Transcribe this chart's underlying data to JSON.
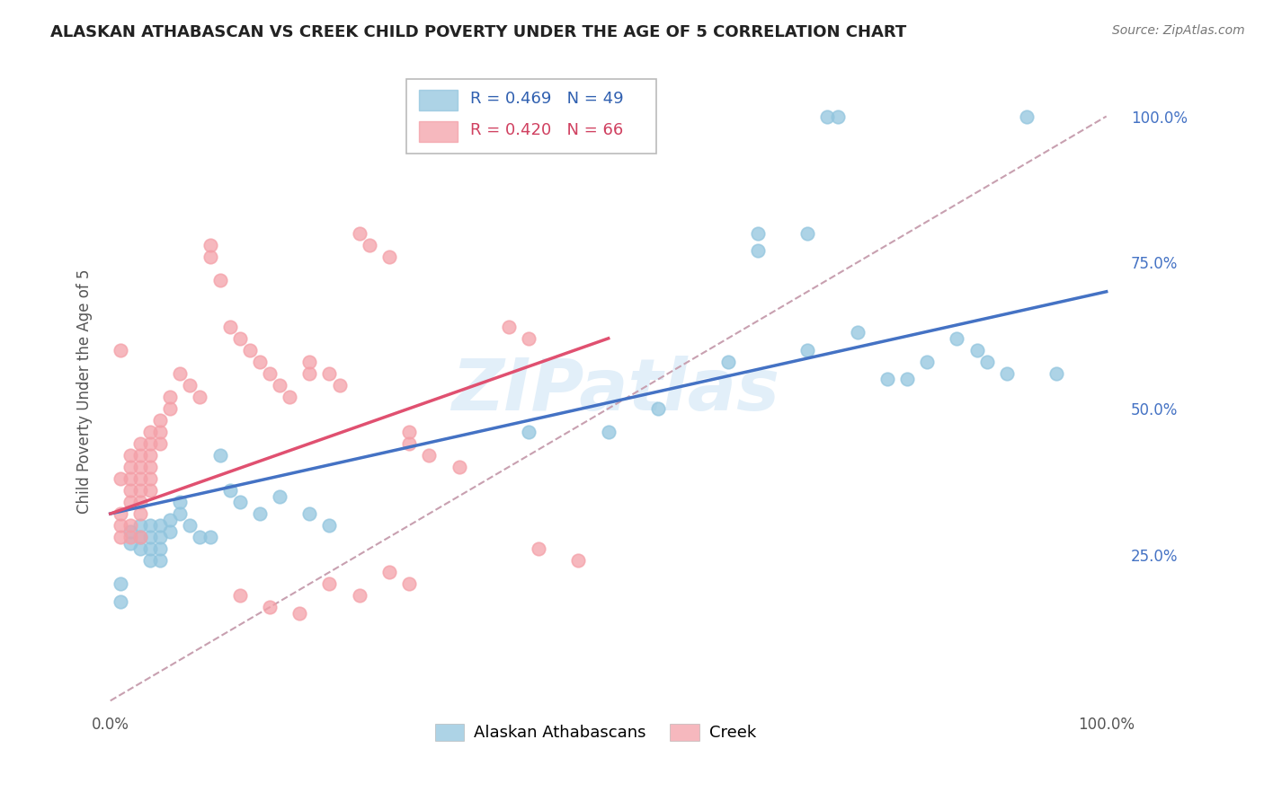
{
  "title": "ALASKAN ATHABASCAN VS CREEK CHILD POVERTY UNDER THE AGE OF 5 CORRELATION CHART",
  "source": "Source: ZipAtlas.com",
  "ylabel": "Child Poverty Under the Age of 5",
  "blue_R": "R = 0.469",
  "blue_N": "N = 49",
  "pink_R": "R = 0.420",
  "pink_N": "N = 66",
  "blue_color": "#92c5de",
  "pink_color": "#f4a0a8",
  "blue_line_color": "#4472c4",
  "pink_line_color": "#e05070",
  "dashed_line_color": "#c8a0b0",
  "watermark": "ZIPatlas",
  "background_color": "#ffffff",
  "grid_color": "#d8d8d8",
  "blue_points_x": [
    0.01,
    0.01,
    0.02,
    0.02,
    0.03,
    0.03,
    0.03,
    0.04,
    0.04,
    0.04,
    0.04,
    0.05,
    0.05,
    0.05,
    0.05,
    0.06,
    0.06,
    0.07,
    0.07,
    0.08,
    0.09,
    0.1,
    0.11,
    0.12,
    0.13,
    0.15,
    0.17,
    0.2,
    0.22,
    0.42,
    0.5,
    0.55,
    0.62,
    0.65,
    0.65,
    0.7,
    0.7,
    0.72,
    0.73,
    0.75,
    0.78,
    0.8,
    0.82,
    0.85,
    0.87,
    0.88,
    0.9,
    0.92,
    0.95
  ],
  "blue_points_y": [
    0.2,
    0.17,
    0.29,
    0.27,
    0.3,
    0.28,
    0.26,
    0.3,
    0.28,
    0.26,
    0.24,
    0.3,
    0.28,
    0.26,
    0.24,
    0.31,
    0.29,
    0.34,
    0.32,
    0.3,
    0.28,
    0.28,
    0.42,
    0.36,
    0.34,
    0.32,
    0.35,
    0.32,
    0.3,
    0.46,
    0.46,
    0.5,
    0.58,
    0.8,
    0.77,
    0.6,
    0.8,
    1.0,
    1.0,
    0.63,
    0.55,
    0.55,
    0.58,
    0.62,
    0.6,
    0.58,
    0.56,
    1.0,
    0.56
  ],
  "pink_points_x": [
    0.01,
    0.01,
    0.01,
    0.01,
    0.01,
    0.02,
    0.02,
    0.02,
    0.02,
    0.02,
    0.02,
    0.02,
    0.03,
    0.03,
    0.03,
    0.03,
    0.03,
    0.03,
    0.03,
    0.03,
    0.04,
    0.04,
    0.04,
    0.04,
    0.04,
    0.04,
    0.05,
    0.05,
    0.05,
    0.06,
    0.06,
    0.07,
    0.08,
    0.09,
    0.1,
    0.1,
    0.11,
    0.12,
    0.13,
    0.14,
    0.15,
    0.16,
    0.17,
    0.18,
    0.2,
    0.2,
    0.22,
    0.23,
    0.25,
    0.26,
    0.28,
    0.3,
    0.3,
    0.32,
    0.35,
    0.4,
    0.42,
    0.13,
    0.16,
    0.19,
    0.22,
    0.25,
    0.28,
    0.3,
    0.43,
    0.47
  ],
  "pink_points_y": [
    0.32,
    0.3,
    0.6,
    0.38,
    0.28,
    0.42,
    0.4,
    0.38,
    0.36,
    0.34,
    0.3,
    0.28,
    0.44,
    0.42,
    0.4,
    0.38,
    0.36,
    0.34,
    0.32,
    0.28,
    0.46,
    0.44,
    0.42,
    0.4,
    0.38,
    0.36,
    0.48,
    0.46,
    0.44,
    0.52,
    0.5,
    0.56,
    0.54,
    0.52,
    0.78,
    0.76,
    0.72,
    0.64,
    0.62,
    0.6,
    0.58,
    0.56,
    0.54,
    0.52,
    0.58,
    0.56,
    0.56,
    0.54,
    0.8,
    0.78,
    0.76,
    0.46,
    0.44,
    0.42,
    0.4,
    0.64,
    0.62,
    0.18,
    0.16,
    0.15,
    0.2,
    0.18,
    0.22,
    0.2,
    0.26,
    0.24
  ],
  "blue_line_x0": 0.0,
  "blue_line_y0": 0.32,
  "blue_line_x1": 1.0,
  "blue_line_y1": 0.7,
  "pink_line_x0": 0.0,
  "pink_line_y0": 0.32,
  "pink_line_x1": 0.5,
  "pink_line_y1": 0.62,
  "xlim_min": -0.005,
  "xlim_max": 1.02,
  "ylim_min": -0.02,
  "ylim_max": 1.08,
  "yticks": [
    0.25,
    0.5,
    0.75,
    1.0
  ],
  "ytick_labels": [
    "25.0%",
    "50.0%",
    "75.0%",
    "100.0%"
  ],
  "xticks": [
    0.0,
    1.0
  ],
  "xtick_labels": [
    "0.0%",
    "100.0%"
  ]
}
